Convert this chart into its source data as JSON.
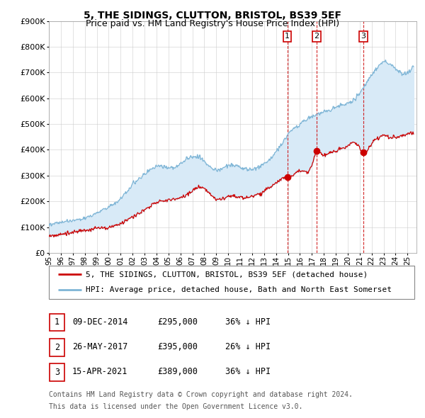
{
  "title": "5, THE SIDINGS, CLUTTON, BRISTOL, BS39 5EF",
  "subtitle": "Price paid vs. HM Land Registry's House Price Index (HPI)",
  "hpi_label": "HPI: Average price, detached house, Bath and North East Somerset",
  "property_label": "5, THE SIDINGS, CLUTTON, BRISTOL, BS39 5EF (detached house)",
  "footer_line1": "Contains HM Land Registry data © Crown copyright and database right 2024.",
  "footer_line2": "This data is licensed under the Open Government Licence v3.0.",
  "sales": [
    {
      "num": 1,
      "date": "09-DEC-2014",
      "price": "£295,000",
      "pct": "36%",
      "direction": "↓",
      "x_year": 2014.94,
      "y_val": 295000
    },
    {
      "num": 2,
      "date": "26-MAY-2017",
      "price": "£395,000",
      "pct": "26%",
      "direction": "↓",
      "x_year": 2017.4,
      "y_val": 395000
    },
    {
      "num": 3,
      "date": "15-APR-2021",
      "price": "£389,000",
      "pct": "36%",
      "direction": "↓",
      "x_year": 2021.29,
      "y_val": 389000
    }
  ],
  "hpi_color": "#7eb5d6",
  "sale_color": "#cc0000",
  "shade_color": "#d8eaf7",
  "vline_color": "#cc0000",
  "ylim": [
    0,
    900000
  ],
  "xlim_start": 1995.0,
  "xlim_end": 2025.75
}
